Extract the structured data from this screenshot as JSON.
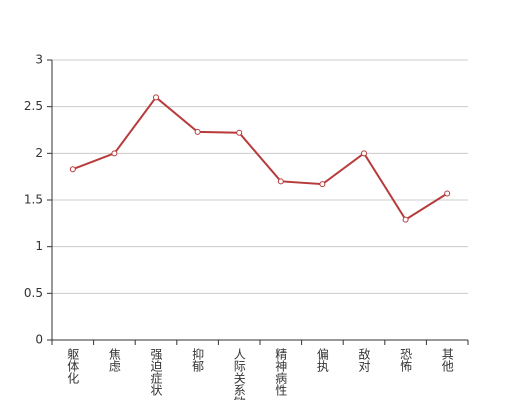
{
  "chart_data": {
    "type": "line",
    "categories": [
      "躯体化",
      "焦虑",
      "强迫症状",
      "抑郁",
      "人际关系敏感",
      "精神病性",
      "偏执",
      "敌对",
      "恐怖",
      "其他"
    ],
    "values": [
      1.83,
      2.0,
      2.6,
      2.23,
      2.22,
      1.7,
      1.67,
      2.0,
      1.29,
      1.57
    ],
    "color": "#b83b3b",
    "ylim": [
      0,
      3
    ],
    "yticks": [
      0,
      0.5,
      1,
      1.5,
      2,
      2.5,
      3
    ],
    "grid": true
  }
}
